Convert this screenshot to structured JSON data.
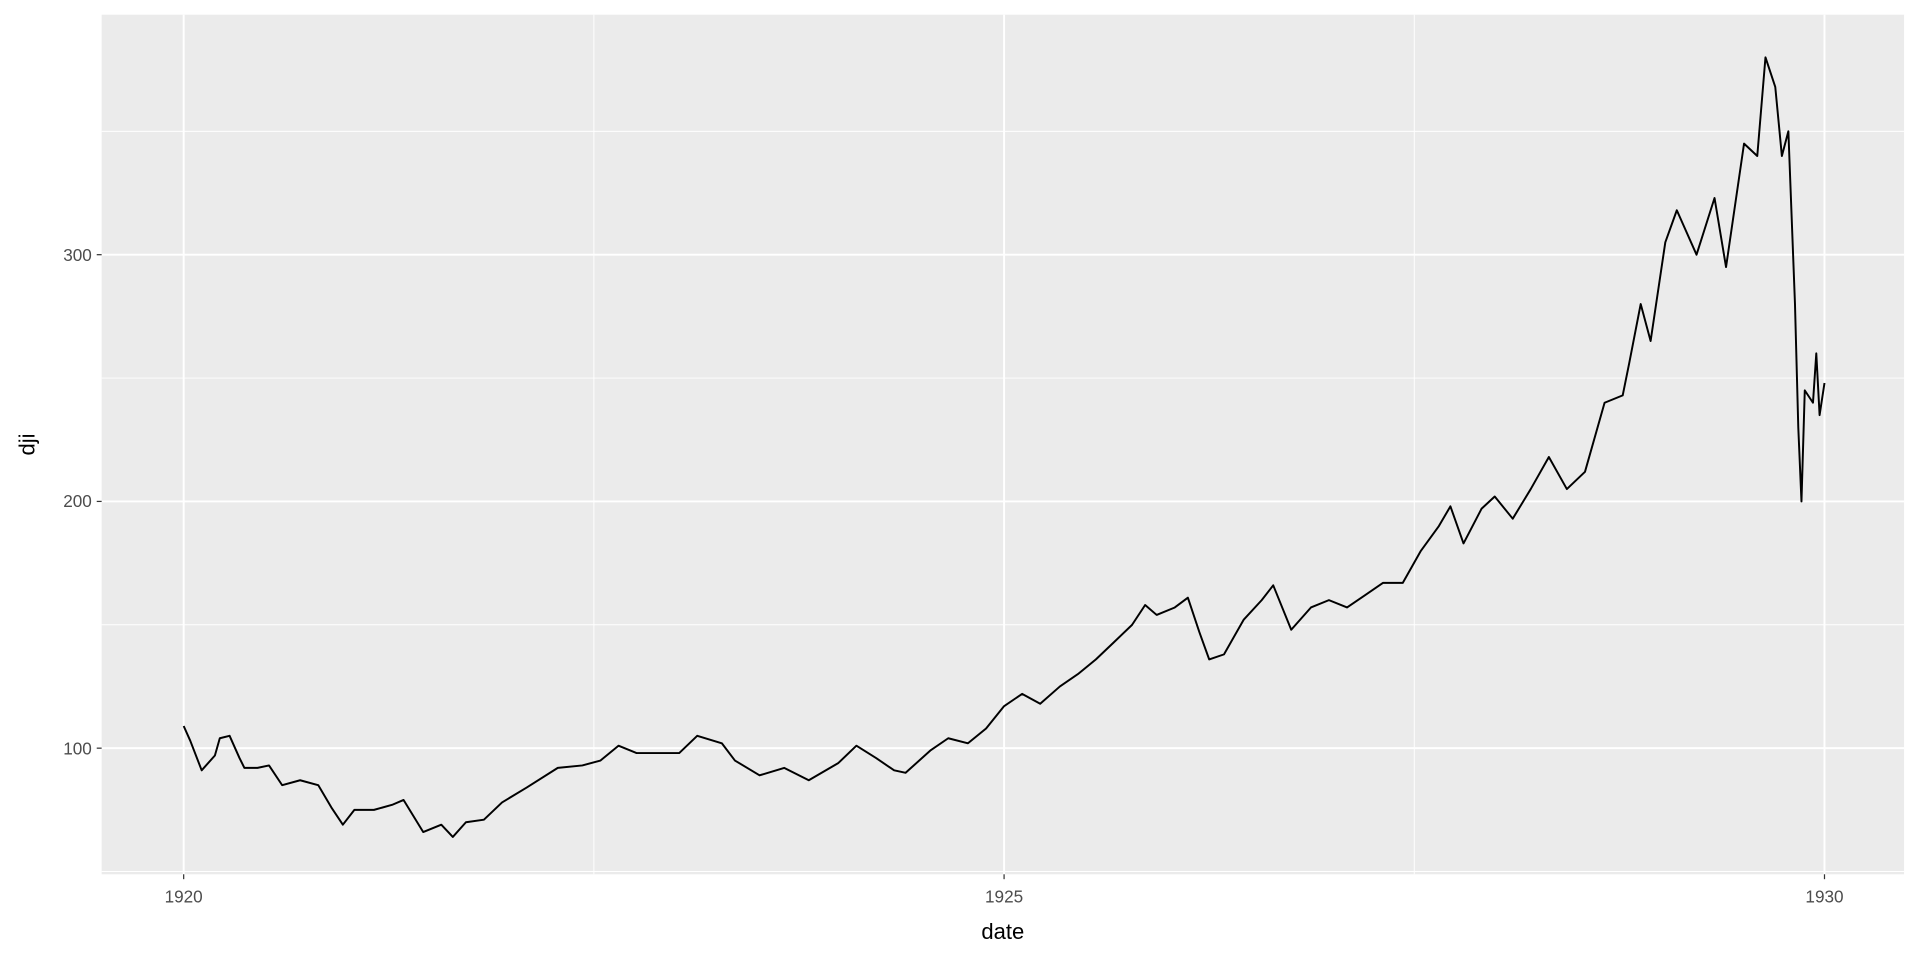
{
  "chart_data": {
    "type": "line",
    "title": "",
    "xlabel": "date",
    "ylabel": "dji",
    "xlim": [
      1919.9,
      1930.1
    ],
    "ylim": [
      48.9,
      397
    ],
    "grid": true,
    "legend": "none",
    "x_ticks": [
      1920,
      1925,
      1930
    ],
    "x_tick_labels": [
      "1920",
      "1925",
      "1930"
    ],
    "y_ticks": [
      100,
      200,
      300
    ],
    "y_tick_labels": [
      "100",
      "200",
      "300"
    ],
    "colors": {
      "panel": "#ebebeb",
      "grid": "#ffffff",
      "line": "#000000"
    },
    "series": [
      {
        "x": [
          1920.0,
          1920.04,
          1920.11,
          1920.19,
          1920.22,
          1920.28,
          1920.34,
          1920.37,
          1920.45,
          1920.52,
          1920.6,
          1920.71,
          1920.82,
          1920.9,
          1920.97,
          1921.04,
          1921.16,
          1921.27,
          1921.34,
          1921.46,
          1921.57,
          1921.64,
          1921.72,
          1921.83,
          1921.94,
          1922.09,
          1922.28,
          1922.43,
          1922.54,
          1922.65,
          1922.76,
          1922.91,
          1923.02,
          1923.13,
          1923.28,
          1923.36,
          1923.51,
          1923.66,
          1923.81,
          1923.99,
          1924.1,
          1924.22,
          1924.33,
          1924.4,
          1924.55,
          1924.66,
          1924.78,
          1924.89,
          1925.0,
          1925.11,
          1925.22,
          1925.34,
          1925.45,
          1925.56,
          1925.67,
          1925.78,
          1925.86,
          1925.93,
          1926.04,
          1926.12,
          1926.19,
          1926.25,
          1926.34,
          1926.46,
          1926.57,
          1926.64,
          1926.75,
          1926.87,
          1926.98,
          1927.09,
          1927.2,
          1927.31,
          1927.43,
          1927.54,
          1927.65,
          1927.72,
          1927.8,
          1927.91,
          1927.99,
          1928.1,
          1928.21,
          1928.32,
          1928.43,
          1928.54,
          1928.66,
          1928.77,
          1928.81,
          1928.88,
          1928.94,
          1929.03,
          1929.1,
          1929.22,
          1929.33,
          1929.4,
          1929.51,
          1929.59,
          1929.64,
          1929.7,
          1929.74,
          1929.78,
          1929.82,
          1929.84,
          1929.86,
          1929.88,
          1929.93,
          1929.95,
          1929.97,
          1930.0
        ],
        "y": [
          109,
          103,
          91,
          97,
          104,
          105,
          96,
          92,
          92,
          93,
          85,
          87,
          85,
          76,
          69,
          75,
          75,
          77,
          79,
          66,
          69,
          64,
          70,
          71,
          78,
          84,
          92,
          93,
          95,
          101,
          98,
          98,
          98,
          105,
          102,
          95,
          89,
          92,
          87,
          94,
          101,
          96,
          91,
          90,
          99,
          104,
          102,
          108,
          117,
          122,
          118,
          125,
          130,
          136,
          143,
          150,
          158,
          154,
          157,
          161,
          147,
          136,
          138,
          152,
          160,
          166,
          148,
          157,
          160,
          157,
          162,
          167,
          167,
          180,
          190,
          198,
          183,
          197,
          202,
          193,
          205,
          218,
          205,
          212,
          240,
          243,
          256,
          280,
          265,
          305,
          318,
          300,
          323,
          295,
          345,
          340,
          380,
          368,
          340,
          350,
          280,
          230,
          200,
          245,
          240,
          260,
          235,
          248
        ]
      }
    ]
  }
}
